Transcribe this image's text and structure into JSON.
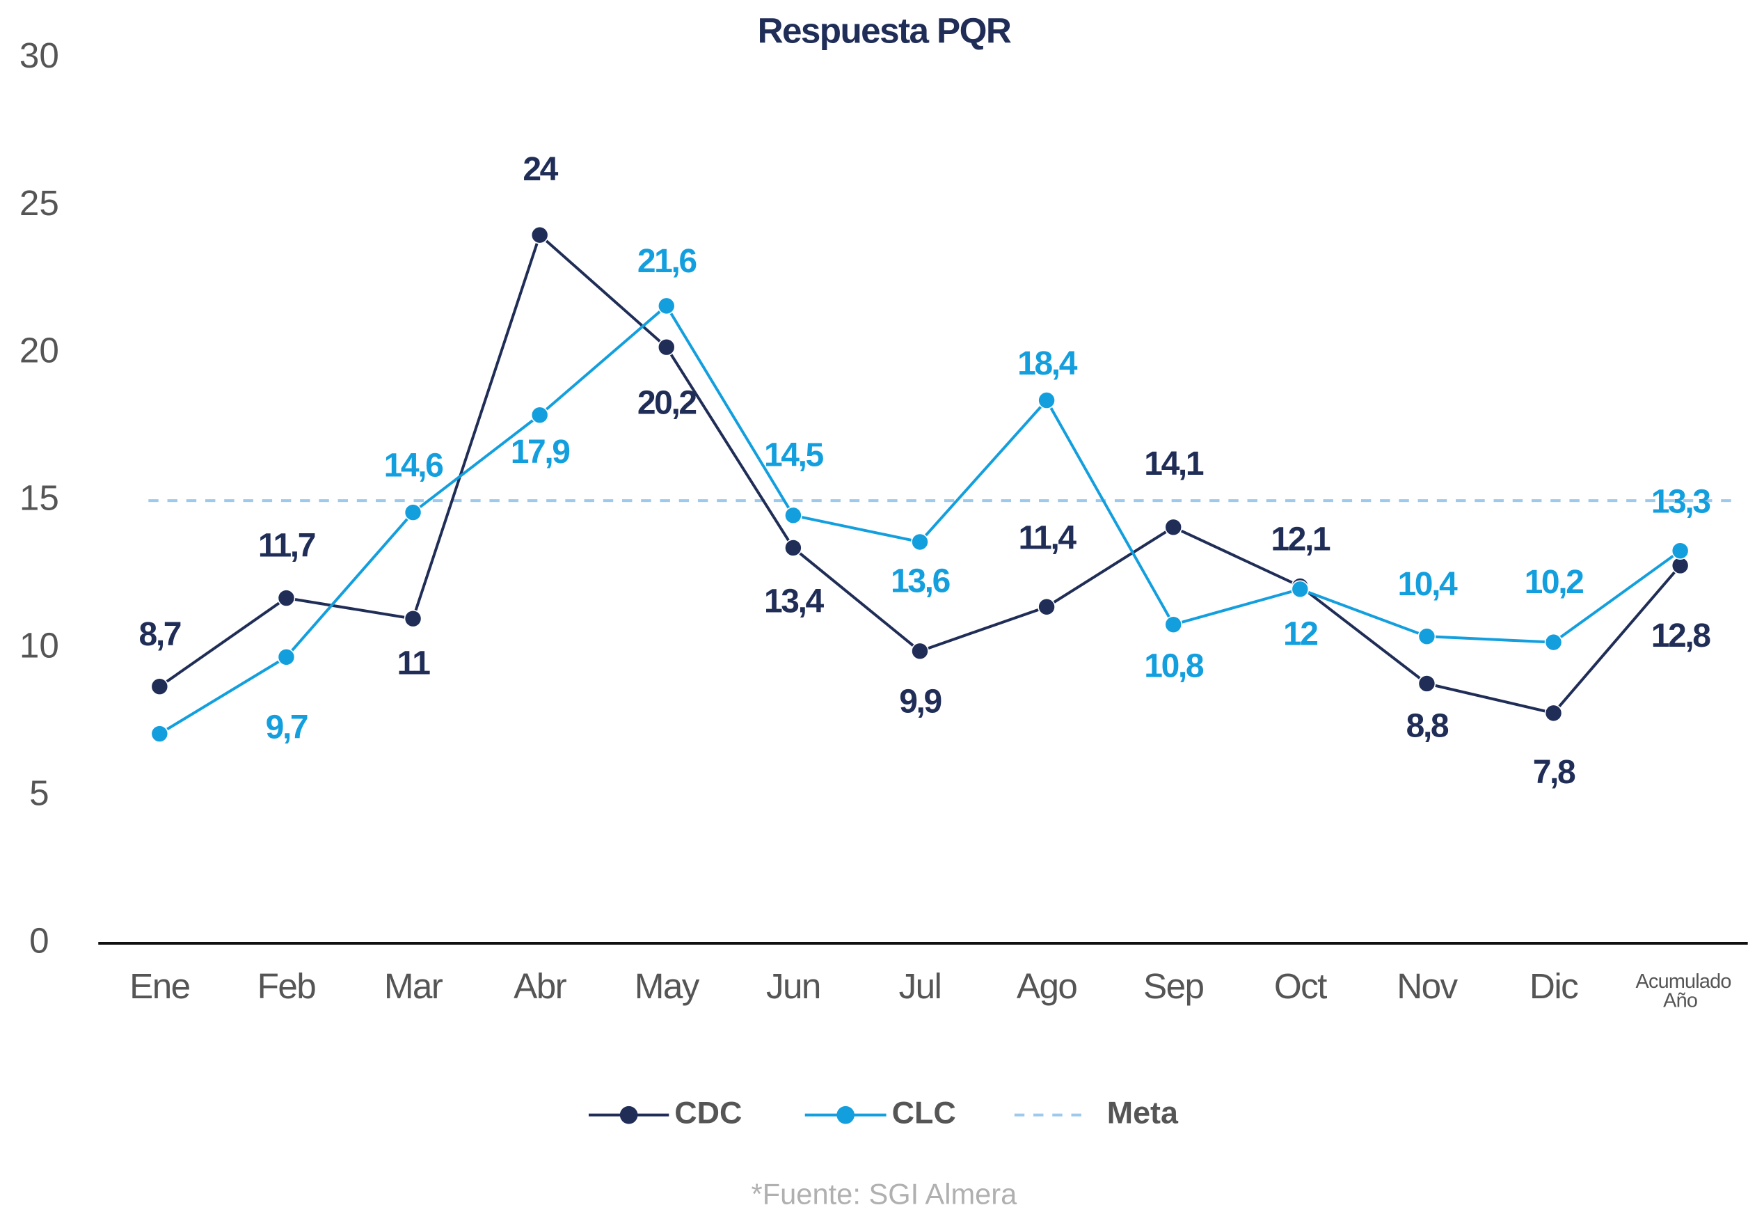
{
  "chart_data": {
    "type": "line",
    "title": "Respuesta PQR",
    "categories": [
      "Ene",
      "Feb",
      "Mar",
      "Abr",
      "May",
      "Jun",
      "Jul",
      "Ago",
      "Sep",
      "Oct",
      "Nov",
      "Dic",
      "Acumulado Año"
    ],
    "series": [
      {
        "name": "CDC",
        "color": "#1f2d57",
        "values": [
          8.7,
          11.7,
          11,
          24,
          20.2,
          13.4,
          9.9,
          11.4,
          14.1,
          12.1,
          8.8,
          7.8,
          12.8
        ],
        "value_labels": [
          "8,7",
          "11,7",
          "11",
          "24",
          "20,2",
          "13,4",
          "9,9",
          "11,4",
          "14,1",
          "12,1",
          "8,8",
          "7,8",
          "12,8"
        ]
      },
      {
        "name": "CLC",
        "color": "#139fde",
        "values": [
          7.1,
          9.7,
          14.6,
          17.9,
          21.6,
          14.5,
          13.6,
          18.4,
          10.8,
          12,
          10.4,
          10.2,
          13.3
        ],
        "value_labels": [
          null,
          "9,7",
          "14,6",
          "17,9",
          "21,6",
          "14,5",
          "13,6",
          "18,4",
          "10,8",
          "12",
          "10,4",
          "10,2",
          "13,3"
        ]
      }
    ],
    "reference_lines": [
      {
        "name": "Meta",
        "value": 15,
        "color": "#9dc9ec"
      }
    ],
    "ylim": [
      0,
      30
    ],
    "yticks": [
      0,
      5,
      10,
      15,
      20,
      25,
      30
    ],
    "footnote": "*Fuente: SGI Almera"
  }
}
